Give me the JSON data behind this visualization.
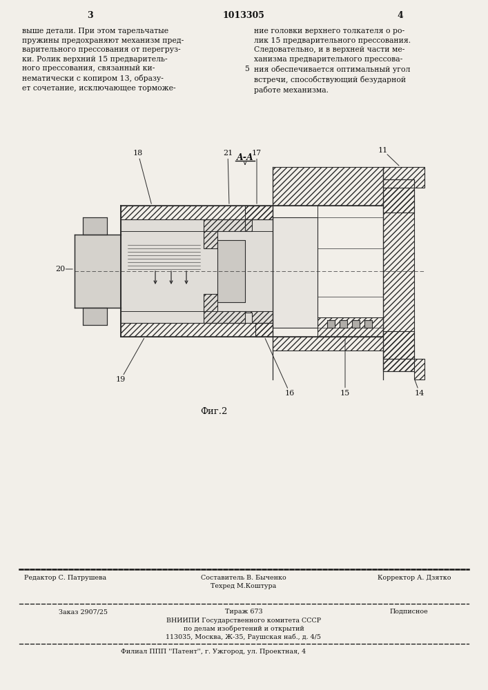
{
  "page_number_left": "3",
  "patent_number": "1013305",
  "page_number_right": "4",
  "col_left_text": "выше детали. При этом тарельчатые\nпружины предохраняют механизм пред-\nварительного прессования от перегруз-\nки. Ролик верхний 15 предваритель-\nного прессования, связанный ки-\nнематически с копиром 13, образу-\nет сочетание, исключающее торможе-",
  "col_right_text": "ние головки верхнего толкателя о ро-\nлик 15 предварительного прессования.\nСледовательно, и в верхней части ме-\nханизма предварительного прессова-\nния обеспечивается оптимальный угол\nвстречи, способствующий безударной\nработе механизма.",
  "col_center_number": "5",
  "figure_label": "Фиг.2",
  "section_label": "A-A",
  "bg_color": "#f2efe9",
  "text_color": "#111111",
  "hatch_color": "#2a2a2a",
  "footer_line1_left": "Редактор С. Патрушева",
  "footer_line1_center": "Составитель В. Быченко\nТехред М.Коштура",
  "footer_line1_right": "Корректор А. Дзятко",
  "footer_line2_left": "Заказ 2907/25",
  "footer_line2_center": "Тираж 673",
  "footer_line2_right": "Подписное",
  "footer_line3": "ВНИИПИ Государственного комитета СССР",
  "footer_line4": "по делам изобретений и открытий",
  "footer_line5": "113035, Москва, Ж-35, Раушская наб., д. 4/5",
  "footer_line6": "Филиал ППП ''Патент'', г. Ужгород, ул. Проектная, 4"
}
